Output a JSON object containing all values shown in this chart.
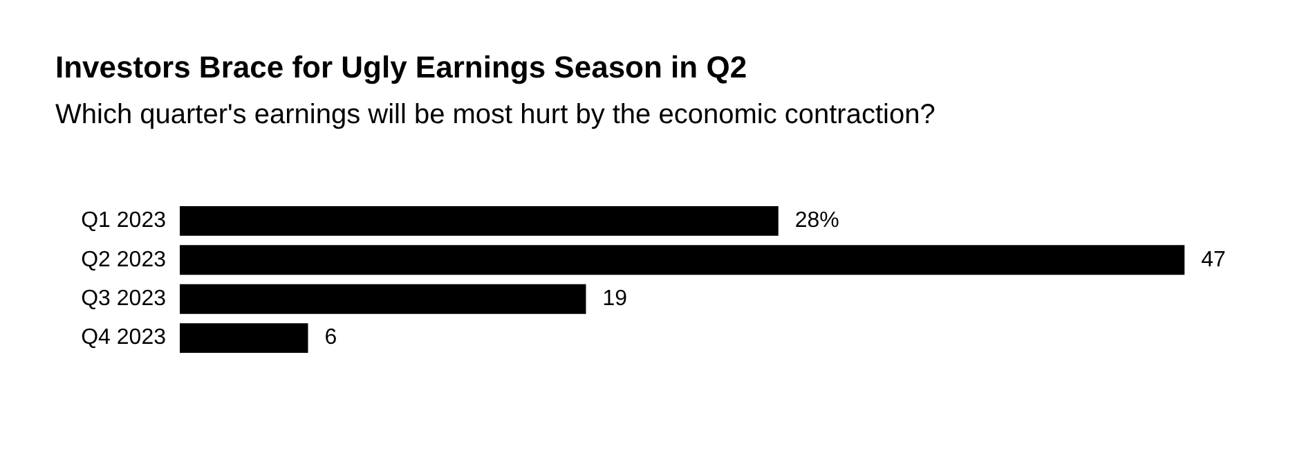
{
  "chart_data": {
    "type": "bar",
    "orientation": "horizontal",
    "title": "Investors Brace for Ugly Earnings Season in Q2",
    "subtitle": "Which quarter's earnings will be most hurt by the economic contraction?",
    "categories": [
      "Q1 2023",
      "Q2 2023",
      "Q3 2023",
      "Q4 2023"
    ],
    "values": [
      28,
      47,
      19,
      6
    ],
    "color": "#000000",
    "value_labels": [
      "28%",
      "47",
      "19",
      "6"
    ],
    "grid": false,
    "legend": false
  }
}
